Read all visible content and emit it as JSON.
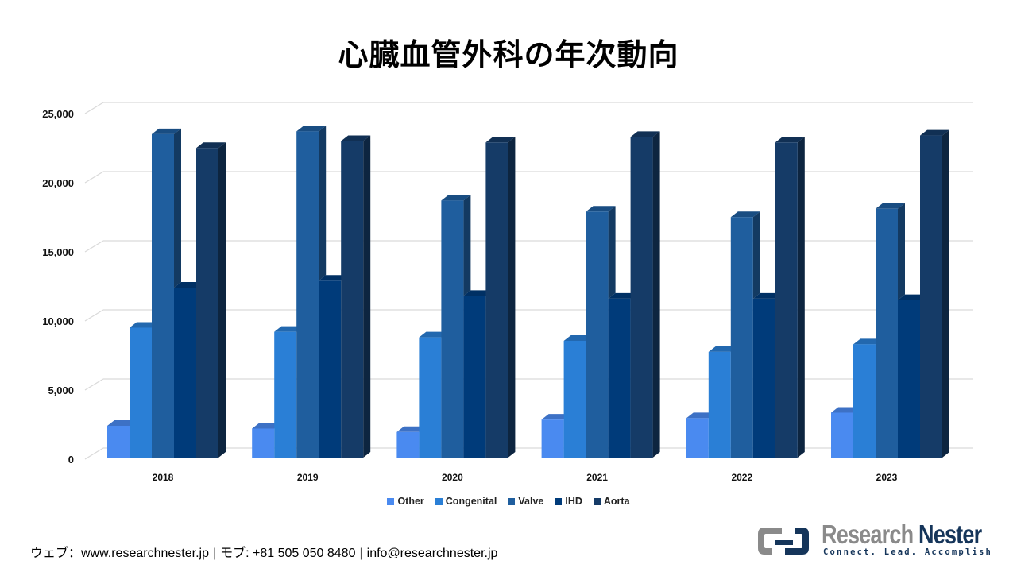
{
  "title": "心臓血管外科の年次動向",
  "chart_data": {
    "type": "bar",
    "title": "心臓血管外科の年次動向",
    "xlabel": "",
    "ylabel": "",
    "categories": [
      "2018",
      "2019",
      "2020",
      "2021",
      "2022",
      "2023"
    ],
    "series": [
      {
        "name": "Other",
        "color": "#4a8af0",
        "values": [
          2300,
          2100,
          1850,
          2750,
          2850,
          3250
        ]
      },
      {
        "name": "Congenital",
        "color": "#2a7fd6",
        "values": [
          9400,
          9100,
          8700,
          8450,
          7650,
          8200
        ]
      },
      {
        "name": "Valve",
        "color": "#1f5e9e",
        "values": [
          23400,
          23600,
          18600,
          17800,
          17400,
          18000
        ]
      },
      {
        "name": "IHD",
        "color": "#003b7a",
        "values": [
          12300,
          12800,
          11700,
          11500,
          11500,
          11400
        ]
      },
      {
        "name": "Aorta",
        "color": "#153b67",
        "values": [
          22400,
          22900,
          22800,
          23200,
          22800,
          23300
        ]
      }
    ],
    "yticks": [
      "0",
      "5,000",
      "10,000",
      "15,000",
      "20,000",
      "25,000"
    ],
    "ylim": [
      0,
      25000
    ],
    "grid": true,
    "legend_position": "bottom",
    "style": "3d-clustered-column"
  },
  "legend": [
    {
      "label": "Other",
      "color": "#4a8af0"
    },
    {
      "label": "Congenital",
      "color": "#2a7fd6"
    },
    {
      "label": "Valve",
      "color": "#1f5e9e"
    },
    {
      "label": "IHD",
      "color": "#003b7a"
    },
    {
      "label": "Aorta",
      "color": "#153b67"
    }
  ],
  "footer": {
    "web": "ウェブ：www.researchnester.jp",
    "phone": "モブ: +81 505 050 8480",
    "email": "info@researchnester.jp",
    "separator": "|"
  },
  "logo": {
    "name_part1": "Research",
    "name_part2": "Nester",
    "tagline": "Connect. Lead. Accomplish"
  }
}
